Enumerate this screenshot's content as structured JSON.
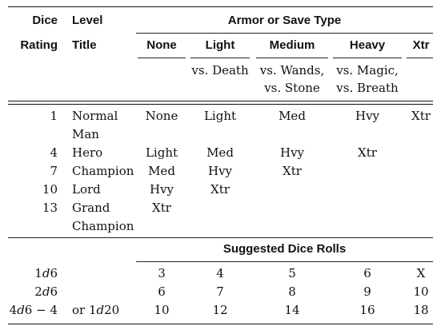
{
  "headers": {
    "dice": "Dice",
    "rating": "Rating",
    "level": "Level",
    "title": "Title",
    "armor_group": "Armor or Save Type",
    "cols": [
      "None",
      "Light",
      "Medium",
      "Heavy",
      "Xtr"
    ],
    "saves": {
      "light_1": "vs. Death",
      "medium_1": "vs. Wands,",
      "medium_2": "vs. Stone",
      "heavy_1": "vs. Magic,",
      "heavy_2": "vs. Breath"
    }
  },
  "rows": [
    {
      "rating": "1",
      "title_1": "Normal",
      "title_2": "Man",
      "none": "None",
      "light": "Light",
      "medium": "Med",
      "heavy": "Hvy",
      "xtr": "Xtr"
    },
    {
      "rating": "4",
      "title_1": "Hero",
      "none": "Light",
      "light": "Med",
      "medium": "Hvy",
      "heavy": "Xtr"
    },
    {
      "rating": "7",
      "title_1": "Champion",
      "none": "Med",
      "light": "Hvy",
      "medium": "Xtr"
    },
    {
      "rating": "10",
      "title_1": "Lord",
      "none": "Hvy",
      "light": "Xtr"
    },
    {
      "rating": "13",
      "title_1": "Grand",
      "title_2": "Champion",
      "none": "Xtr"
    }
  ],
  "rolls": {
    "heading": "Suggested Dice Rolls",
    "rows": [
      {
        "dice_a": "1",
        "dice_b": "d",
        "dice_c": "6",
        "alt": "",
        "vals": [
          "3",
          "4",
          "5",
          "6",
          "X"
        ]
      },
      {
        "dice_a": "2",
        "dice_b": "d",
        "dice_c": "6",
        "alt": "",
        "vals": [
          "6",
          "7",
          "8",
          "9",
          "10"
        ]
      },
      {
        "dice_a": "4",
        "dice_b": "d",
        "dice_c": "6 − 4",
        "alt_a": "or 1",
        "alt_b": "d",
        "alt_c": "20",
        "vals": [
          "10",
          "12",
          "14",
          "16",
          "18"
        ]
      }
    ]
  }
}
